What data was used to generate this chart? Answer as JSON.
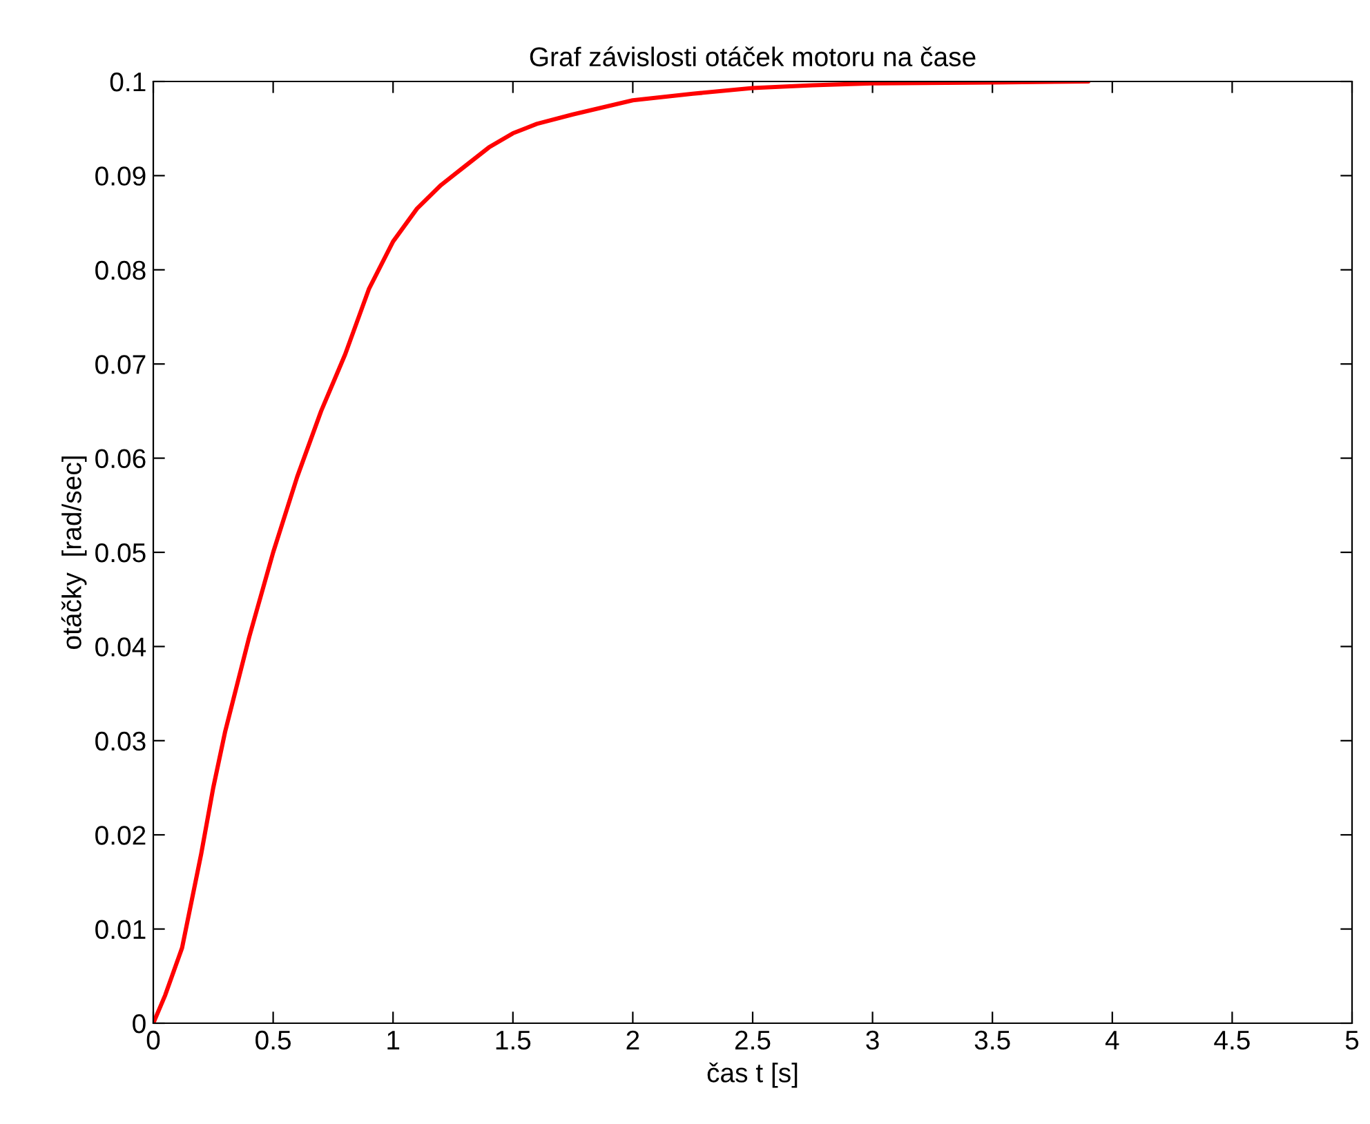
{
  "chart_data": {
    "type": "line",
    "title": "Graf závislosti otáček motoru na čase",
    "xlabel": "čas t [s]",
    "ylabel": "otáčky  [rad/sec]",
    "series": [
      {
        "color": "#ff0000",
        "x": [
          0,
          0.05,
          0.12,
          0.2,
          0.25,
          0.3,
          0.4,
          0.5,
          0.6,
          0.7,
          0.75,
          0.8,
          0.9,
          1.0,
          1.1,
          1.2,
          1.3,
          1.4,
          1.5,
          1.6,
          1.75,
          2.0,
          2.25,
          2.5,
          2.75,
          3.0,
          3.5,
          3.9
        ],
        "values": [
          0,
          0.003,
          0.008,
          0.018,
          0.025,
          0.031,
          0.041,
          0.05,
          0.058,
          0.065,
          0.068,
          0.071,
          0.078,
          0.083,
          0.0865,
          0.089,
          0.091,
          0.093,
          0.0945,
          0.0955,
          0.0965,
          0.098,
          0.0987,
          0.0993,
          0.0996,
          0.0998,
          0.0999,
          0.1
        ]
      }
    ],
    "xlim": [
      0,
      5
    ],
    "ylim": [
      0,
      0.1
    ],
    "xticks": [
      0,
      0.5,
      1,
      1.5,
      2,
      2.5,
      3,
      3.5,
      4,
      4.5,
      5
    ],
    "yticks": [
      0,
      0.01,
      0.02,
      0.03,
      0.04,
      0.05,
      0.06,
      0.07,
      0.08,
      0.09,
      0.1
    ],
    "grid": false,
    "legend": false
  }
}
